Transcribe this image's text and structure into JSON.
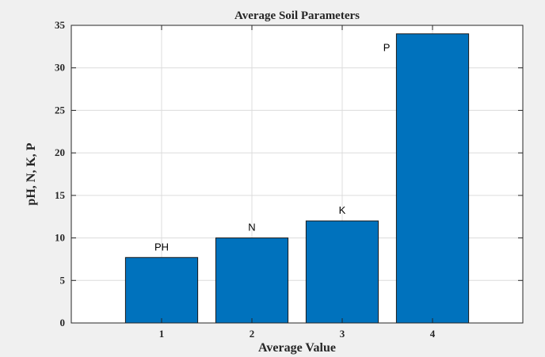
{
  "chart_data": {
    "type": "bar",
    "title": "Average Soil Parameters",
    "xlabel": "Average Value",
    "ylabel": "pH, N, K, P",
    "categories": [
      "1",
      "2",
      "3",
      "4"
    ],
    "values": [
      7.7,
      10,
      12,
      34
    ],
    "bar_labels": [
      "PH",
      "N",
      "K",
      "P"
    ],
    "xlim": [
      0,
      5
    ],
    "ylim": [
      0,
      35
    ],
    "yticks": [
      0,
      5,
      10,
      15,
      20,
      25,
      30,
      35
    ],
    "grid": true,
    "colors": {
      "bar": "#0072bd",
      "grid": "#dcdcdc",
      "axis": "#262626",
      "plot_bg": "#ffffff"
    }
  }
}
